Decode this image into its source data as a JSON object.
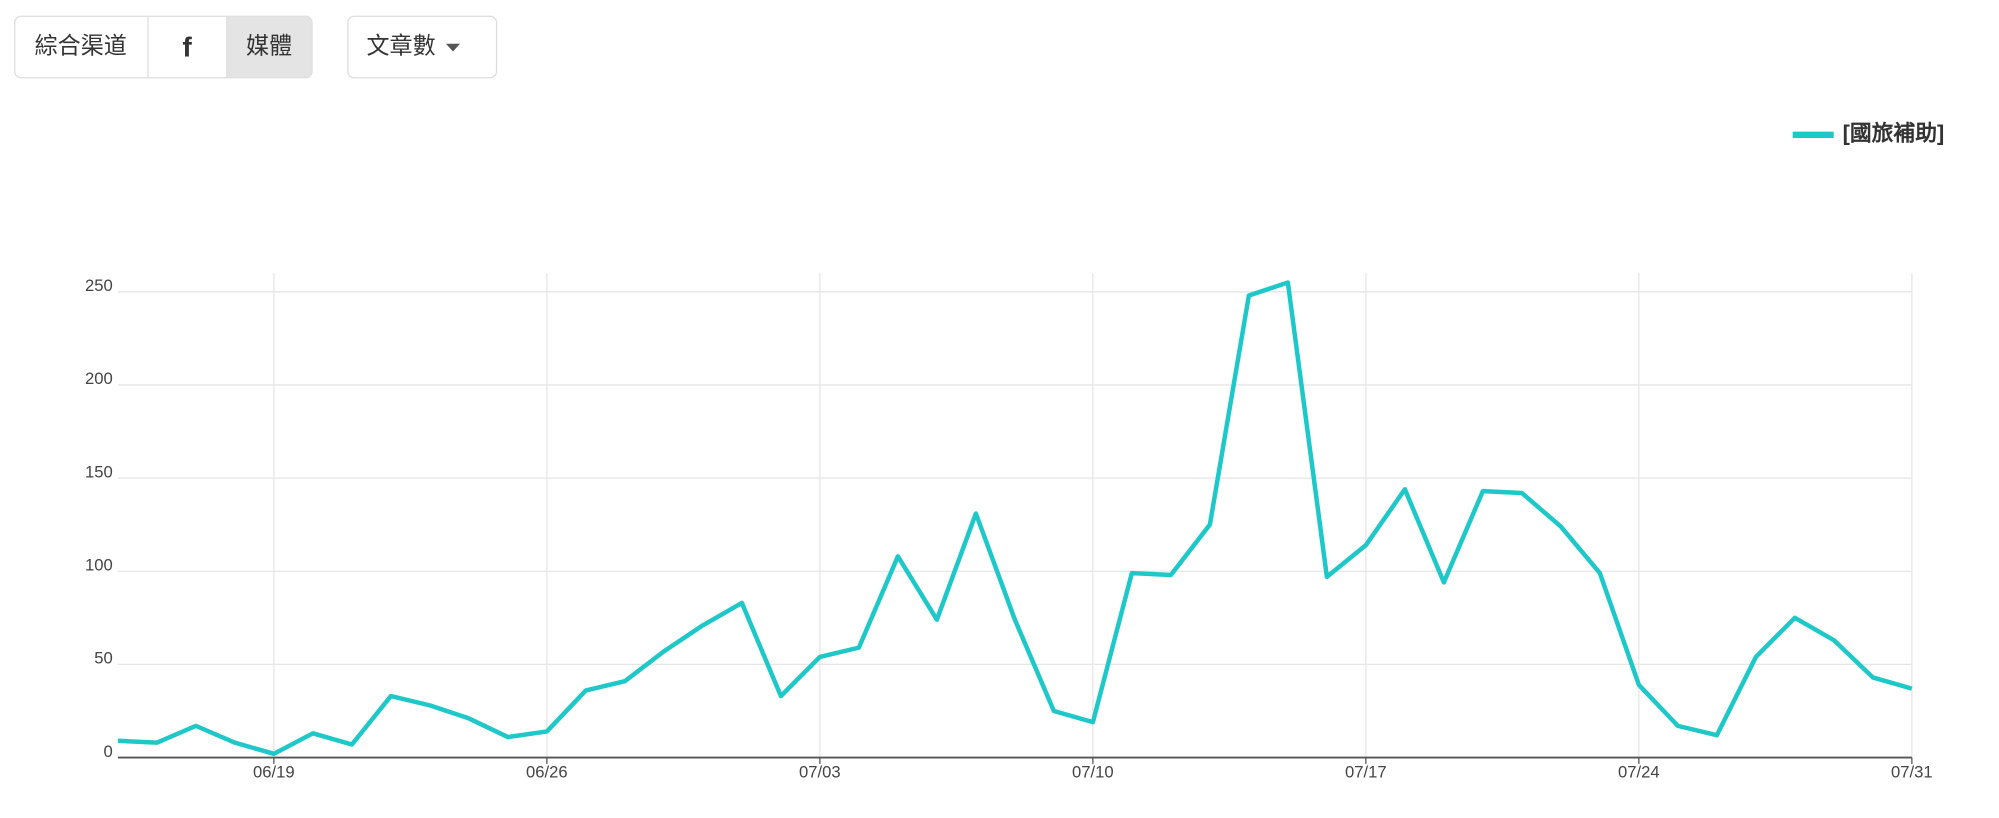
{
  "controls": {
    "tabs": [
      "綜合渠道",
      "f",
      "媒體"
    ],
    "dropdown": "文章數"
  },
  "chart_data": {
    "type": "line",
    "categories": [
      null,
      null,
      null,
      null,
      "06/19",
      null,
      null,
      null,
      null,
      null,
      null,
      "06/26",
      null,
      null,
      null,
      null,
      null,
      null,
      "07/03",
      null,
      null,
      null,
      null,
      null,
      null,
      "07/10",
      null,
      null,
      null,
      null,
      null,
      null,
      "07/17",
      null,
      null,
      null,
      null,
      null,
      null,
      "07/24",
      null,
      null,
      null,
      null,
      null,
      null,
      "07/31"
    ],
    "series": [
      {
        "name": "[國旅補助]",
        "color": "#1ec8c8",
        "values": [
          9,
          8,
          17,
          8,
          2,
          13,
          7,
          33,
          28,
          21,
          11,
          14,
          36,
          41,
          57,
          71,
          83,
          33,
          54,
          59,
          108,
          74,
          131,
          74,
          25,
          19,
          99,
          98,
          125,
          248,
          255,
          97,
          114,
          144,
          94,
          143,
          142,
          124,
          99,
          39,
          17,
          12,
          54,
          75,
          63,
          43,
          37
        ]
      }
    ],
    "ylim": [
      0,
      260
    ],
    "yticks": [
      0,
      50,
      100,
      150,
      200,
      250
    ],
    "grid": true,
    "legend": "top-right"
  }
}
